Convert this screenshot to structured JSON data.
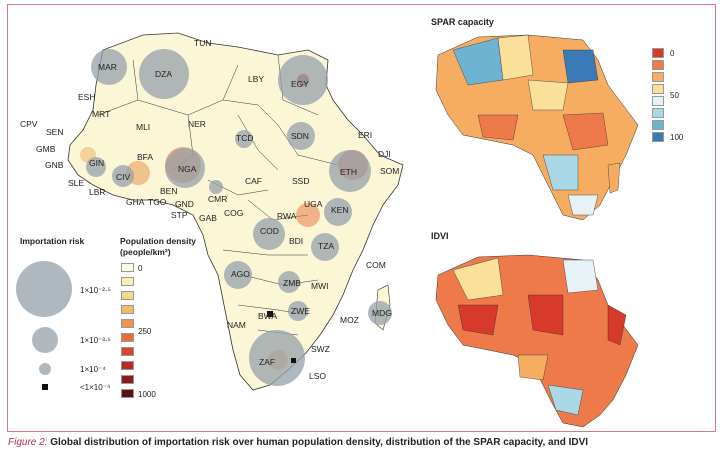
{
  "figure": {
    "caption_label": "Figure 2:",
    "caption_text": "Global distribution of importation risk over human population density, distribution of the SPAR capacity, and IDVI"
  },
  "main_map": {
    "country_labels": [
      "TUN",
      "MAR",
      "DZA",
      "LBY",
      "EGY",
      "ESH",
      "MRT",
      "MLI",
      "NER",
      "TCD",
      "SDN",
      "ERI",
      "CPV",
      "SEN",
      "GMB",
      "GNB",
      "GIN",
      "BFA",
      "NGA",
      "DJI",
      "ETH",
      "SOM",
      "SLE",
      "LBR",
      "CIV",
      "GHA",
      "TGO",
      "BEN",
      "CMR",
      "CAF",
      "SSD",
      "GND",
      "STP",
      "GAB",
      "COG",
      "RWA",
      "UGA",
      "KEN",
      "COD",
      "BDI",
      "TZA",
      "AGO",
      "ZMB",
      "MWI",
      "COM",
      "MDG",
      "MOZ",
      "NAM",
      "BWA",
      "ZWE",
      "SWZ",
      "ZAF",
      "LSO"
    ]
  },
  "importation_risk_legend": {
    "title": "Importation risk",
    "items": [
      "1×10⁻²·⁵",
      "1×10⁻³·⁵",
      "1×10⁻⁴",
      "<1×10⁻⁴"
    ]
  },
  "population_legend": {
    "title_line1": "Population density",
    "title_line2": "(people/km²)",
    "labels": [
      "0",
      "250",
      "1000"
    ],
    "colors": [
      "#fdfbe6",
      "#f8efb0",
      "#f3d98a",
      "#efbb6c",
      "#ea9650",
      "#e56f3c",
      "#d8462d",
      "#b82b22",
      "#8b1a1a",
      "#5e0f12"
    ]
  },
  "spar_map": {
    "title": "SPAR capacity",
    "legend_labels": [
      "0",
      "50",
      "100"
    ],
    "legend_colors": [
      "#d7392b",
      "#ee7a4a",
      "#f6ad62",
      "#fbe09a",
      "#e6f2f5",
      "#a9d8e6",
      "#6eb4d2",
      "#3a7ab6"
    ]
  },
  "idvi_map": {
    "title": "IDVI"
  }
}
